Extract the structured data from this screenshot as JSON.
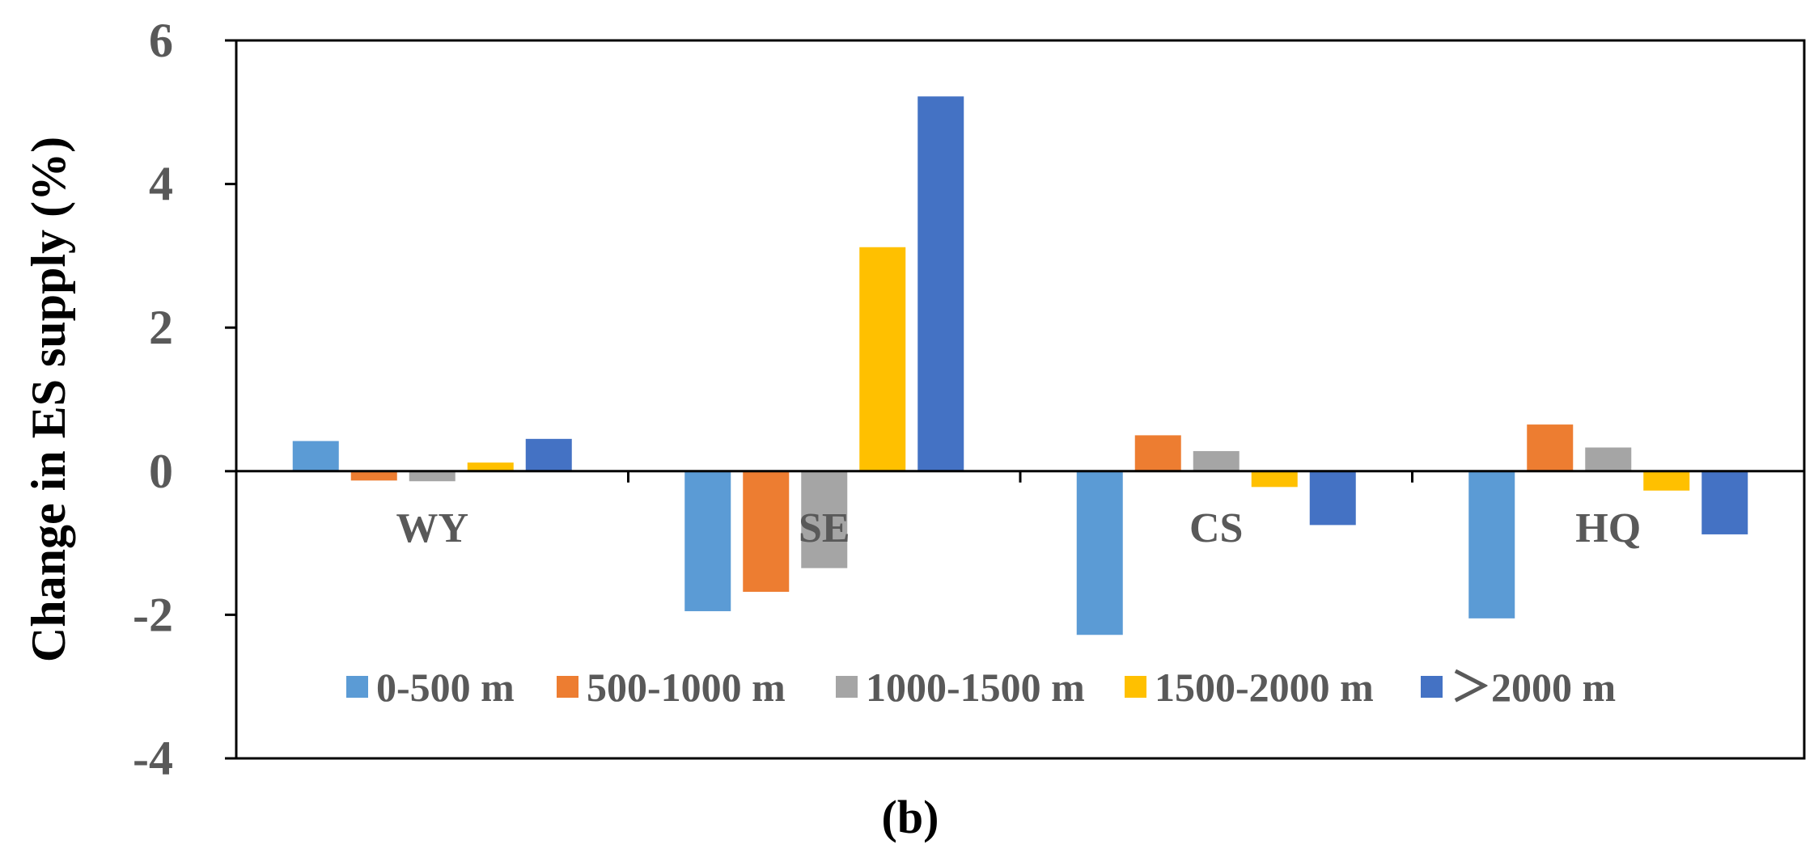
{
  "chart_data": {
    "type": "bar",
    "title": "",
    "xlabel": "",
    "ylabel": "Change in ES supply (%)",
    "caption": "(b)",
    "categories": [
      "WY",
      "SE",
      "CS",
      "HQ"
    ],
    "ylim": [
      -4,
      6
    ],
    "yticks": [
      6,
      4,
      2,
      0,
      -2,
      -4
    ],
    "ytick_labels": [
      "6",
      "4",
      "2",
      "0",
      "-2",
      "-4"
    ],
    "legend_position": "bottom-center, inside plot",
    "grid": false,
    "series": [
      {
        "name": "0-500 m",
        "color": "#5B9BD5",
        "values": [
          0.42,
          -1.95,
          -2.28,
          -2.05
        ]
      },
      {
        "name": "500-1000 m",
        "color": "#ED7D31",
        "values": [
          -0.13,
          -1.68,
          0.5,
          0.65
        ]
      },
      {
        "name": "1000-1500 m",
        "color": "#A5A5A5",
        "values": [
          -0.14,
          -1.35,
          0.28,
          0.33
        ]
      },
      {
        "name": "1500-2000 m",
        "color": "#FFC000",
        "values": [
          0.12,
          3.12,
          -0.22,
          -0.27
        ]
      },
      {
        "name": "＞2000 m",
        "color": "#4472C4",
        "values": [
          0.45,
          5.22,
          -0.75,
          -0.88
        ]
      }
    ]
  }
}
